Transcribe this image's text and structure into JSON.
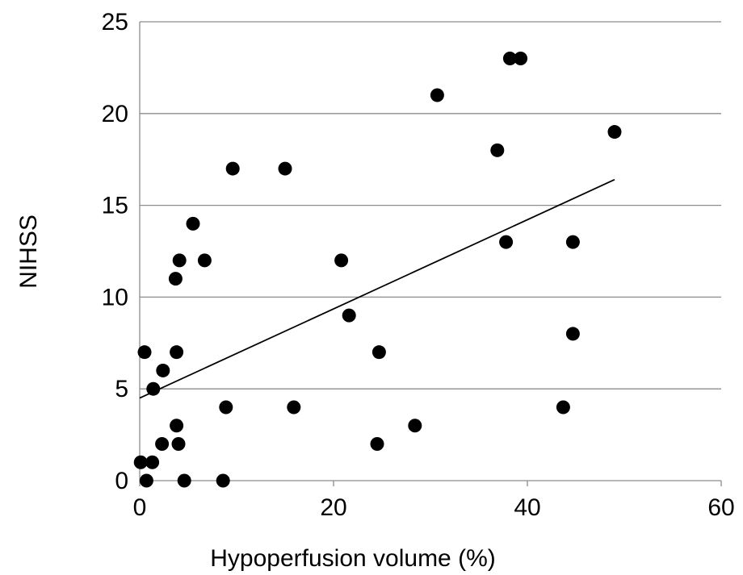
{
  "chart_data": {
    "type": "scatter",
    "title": "",
    "xlabel": "Hypoperfusion volume (%)",
    "ylabel": "NIHSS",
    "xlim": [
      0,
      60
    ],
    "ylim": [
      0,
      25
    ],
    "x_ticks": [
      "0",
      "20",
      "40",
      "60"
    ],
    "y_ticks": [
      "0",
      "5",
      "10",
      "15",
      "20",
      "25"
    ],
    "grid": "horizontal",
    "legend": "none",
    "marker_color": "#000000",
    "grid_color": "#8c8c8c",
    "series": [
      {
        "points": [
          {
            "x": 0.1,
            "y": 1
          },
          {
            "x": 0.5,
            "y": 7
          },
          {
            "x": 0.7,
            "y": 0
          },
          {
            "x": 1.3,
            "y": 1
          },
          {
            "x": 1.4,
            "y": 5
          },
          {
            "x": 2.3,
            "y": 2
          },
          {
            "x": 2.4,
            "y": 6
          },
          {
            "x": 3.7,
            "y": 11
          },
          {
            "x": 3.8,
            "y": 7
          },
          {
            "x": 3.8,
            "y": 3
          },
          {
            "x": 4.0,
            "y": 2
          },
          {
            "x": 4.1,
            "y": 12
          },
          {
            "x": 4.6,
            "y": 0
          },
          {
            "x": 5.5,
            "y": 14
          },
          {
            "x": 6.7,
            "y": 12
          },
          {
            "x": 8.6,
            "y": 0
          },
          {
            "x": 8.9,
            "y": 4
          },
          {
            "x": 9.6,
            "y": 17
          },
          {
            "x": 15.0,
            "y": 17
          },
          {
            "x": 15.9,
            "y": 4
          },
          {
            "x": 20.8,
            "y": 12
          },
          {
            "x": 21.6,
            "y": 9
          },
          {
            "x": 24.5,
            "y": 2
          },
          {
            "x": 24.7,
            "y": 7
          },
          {
            "x": 28.4,
            "y": 3
          },
          {
            "x": 30.7,
            "y": 21
          },
          {
            "x": 36.9,
            "y": 18
          },
          {
            "x": 37.8,
            "y": 13
          },
          {
            "x": 38.2,
            "y": 23
          },
          {
            "x": 39.3,
            "y": 23
          },
          {
            "x": 43.7,
            "y": 4
          },
          {
            "x": 44.7,
            "y": 13
          },
          {
            "x": 44.7,
            "y": 8
          },
          {
            "x": 49.0,
            "y": 19
          }
        ]
      }
    ],
    "trendline": {
      "x": [
        0,
        49
      ],
      "y": [
        4.5,
        16.4
      ]
    }
  }
}
